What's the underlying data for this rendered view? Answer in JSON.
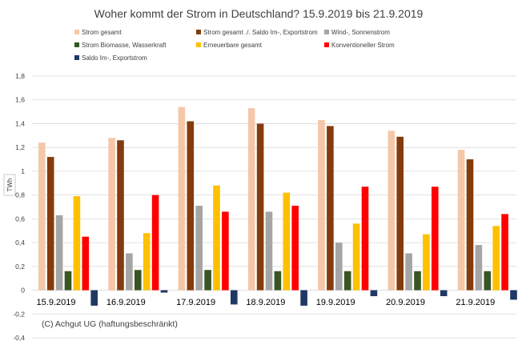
{
  "chart_data": {
    "type": "bar",
    "title": "Woher kommt der Strom in Deutschland? 15.9.2019 bis 21.9.2019",
    "ylabel": "TWh",
    "xlabel": "",
    "ylim": [
      -0.4,
      1.8
    ],
    "yticks": [
      -0.4,
      -0.2,
      0,
      0.2,
      0.4,
      0.6,
      0.8,
      1,
      1.2,
      1.4,
      1.6,
      1.8
    ],
    "ytick_labels": [
      "-0,4",
      "-0,2",
      "0",
      "0,2",
      "0,4",
      "0,6",
      "0,8",
      "1",
      "1,2",
      "1,4",
      "1,6",
      "1,8"
    ],
    "grid": "horizontal",
    "categories": [
      "15.9.2019",
      "16.9.2019",
      "17.9.2019",
      "18.9.2019",
      "19.9.2019",
      "20.9.2019",
      "21.9.2019"
    ],
    "series": [
      {
        "name": "Strom gesamt",
        "color": "#F4C7A9",
        "values": [
          1.24,
          1.28,
          1.54,
          1.53,
          1.43,
          1.34,
          1.18
        ]
      },
      {
        "name": "Strom gesamt ./. Saldo Im-, Exportstrom",
        "color": "#843C0C",
        "values": [
          1.12,
          1.26,
          1.42,
          1.4,
          1.38,
          1.29,
          1.1
        ]
      },
      {
        "name": "Wind-, Sonnenstrom",
        "color": "#A5A5A5",
        "values": [
          0.63,
          0.31,
          0.71,
          0.66,
          0.4,
          0.31,
          0.38
        ]
      },
      {
        "name": "Strom Biomasse, Wasserkraft",
        "color": "#375623",
        "values": [
          0.16,
          0.17,
          0.17,
          0.16,
          0.16,
          0.16,
          0.16
        ]
      },
      {
        "name": "Erneuerbare gesamt",
        "color": "#FFC000",
        "values": [
          0.79,
          0.48,
          0.88,
          0.82,
          0.56,
          0.47,
          0.54
        ]
      },
      {
        "name": "Konventioneller Strom",
        "color": "#FF0000",
        "values": [
          0.45,
          0.8,
          0.66,
          0.71,
          0.87,
          0.87,
          0.64
        ]
      },
      {
        "name": "Saldo Im-, Exportstrom",
        "color": "#203864",
        "values": [
          -0.13,
          -0.02,
          -0.12,
          -0.13,
          -0.05,
          -0.05,
          -0.08
        ]
      }
    ],
    "annotation": "(C) Achgut UG (haftungsbeschränkt)"
  }
}
